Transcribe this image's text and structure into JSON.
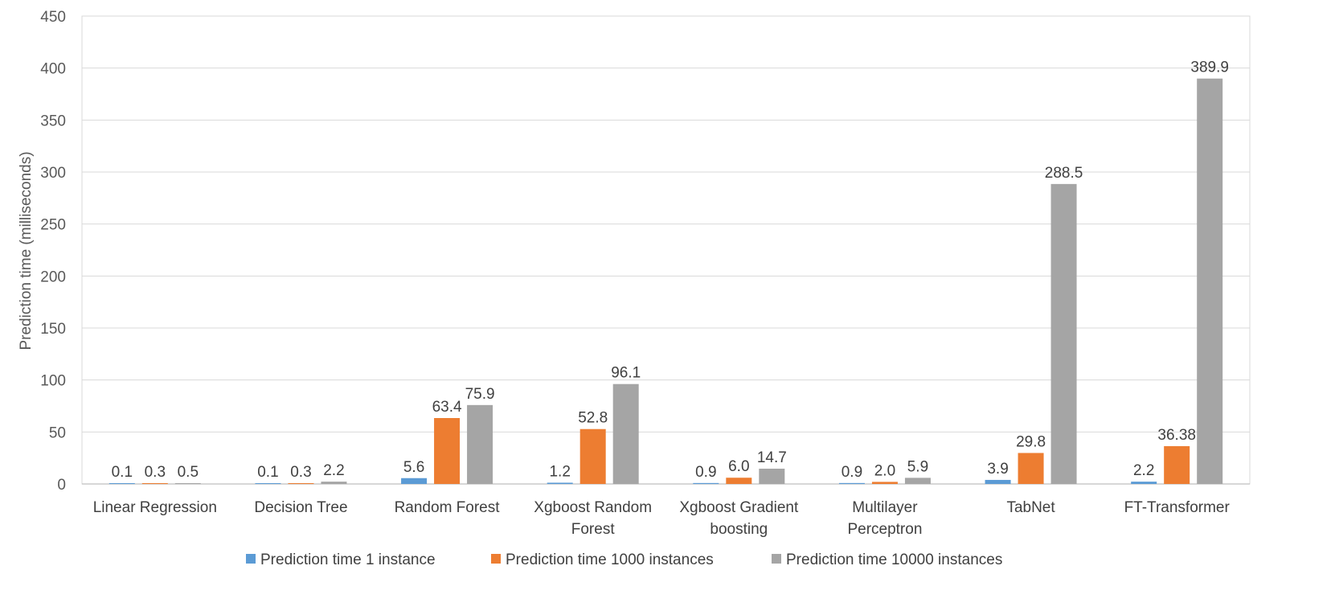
{
  "chart_data": {
    "type": "bar",
    "title": "",
    "xlabel": "",
    "ylabel": "Prediction time (milliseconds)",
    "ylim": [
      0,
      450
    ],
    "yticks": [
      0,
      50,
      100,
      150,
      200,
      250,
      300,
      350,
      400,
      450
    ],
    "grid": true,
    "legend_position": "bottom",
    "categories": [
      [
        "Linear Regression"
      ],
      [
        "Decision Tree"
      ],
      [
        "Random Forest"
      ],
      [
        "Xgboost Random",
        "Forest"
      ],
      [
        "Xgboost Gradient",
        "boosting"
      ],
      [
        "Multilayer",
        "Perceptron"
      ],
      [
        "TabNet"
      ],
      [
        "FT-Transformer"
      ]
    ],
    "series": [
      {
        "name": "Prediction time 1 instance",
        "color": "#5B9BD5",
        "values": [
          0.1,
          0.1,
          5.6,
          1.2,
          0.9,
          0.9,
          3.9,
          2.2
        ],
        "labels": [
          "0.1",
          "0.1",
          "5.6",
          "1.2",
          "0.9",
          "0.9",
          "3.9",
          "2.2"
        ]
      },
      {
        "name": "Prediction time 1000 instances",
        "color": "#ED7D31",
        "values": [
          0.3,
          0.3,
          63.4,
          52.8,
          6.0,
          2.0,
          29.8,
          36.38
        ],
        "labels": [
          "0.3",
          "0.3",
          "63.4",
          "52.8",
          "6.0",
          "2.0",
          "29.8",
          "36.38"
        ]
      },
      {
        "name": "Prediction time 10000 instances",
        "color": "#A5A5A5",
        "values": [
          0.5,
          2.2,
          75.9,
          96.1,
          14.7,
          5.9,
          288.5,
          389.9
        ],
        "labels": [
          "0.5",
          "2.2",
          "75.9",
          "96.1",
          "14.7",
          "5.9",
          "288.5",
          "389.9"
        ]
      }
    ]
  }
}
